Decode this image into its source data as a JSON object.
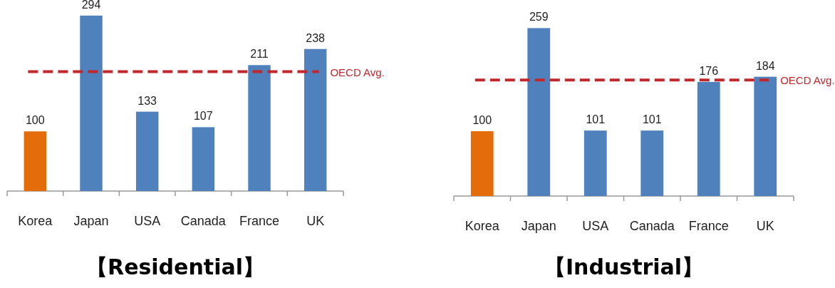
{
  "chart_data": [
    {
      "type": "bar",
      "title": "【Residential】",
      "categories": [
        "Korea",
        "Japan",
        "USA",
        "Canada",
        "France",
        "UK"
      ],
      "values": [
        100,
        294,
        133,
        107,
        211,
        238
      ],
      "colors": [
        "#e46c0a",
        "#4f81bd",
        "#4f81bd",
        "#4f81bd",
        "#4f81bd",
        "#4f81bd"
      ],
      "data_labels": true,
      "ref_lines": [
        {
          "axis": "y",
          "value": 200,
          "label": "OECD Avg.",
          "color": "#c0282d",
          "line_style": "dashed"
        }
      ]
    },
    {
      "type": "bar",
      "title": "【Industrial】",
      "categories": [
        "Korea",
        "Japan",
        "USA",
        "Canada",
        "France",
        "UK"
      ],
      "values": [
        100,
        259,
        101,
        101,
        176,
        184
      ],
      "colors": [
        "#e46c0a",
        "#4f81bd",
        "#4f81bd",
        "#4f81bd",
        "#4f81bd",
        "#4f81bd"
      ],
      "data_labels": true,
      "ref_lines": [
        {
          "axis": "y",
          "value": 179,
          "label": "OECD Avg.",
          "color": "#c0282d",
          "line_style": "dashed"
        }
      ]
    }
  ]
}
